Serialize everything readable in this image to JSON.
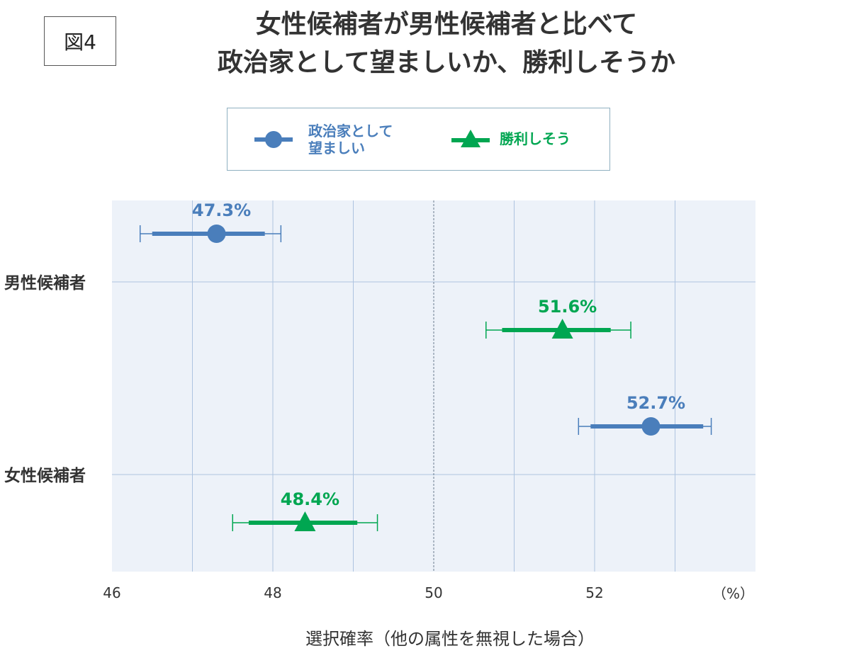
{
  "figure_label": "図4",
  "title_lines": [
    "女性候補者が男性候補者と比べて",
    "政治家として望ましいか、勝利しそうか"
  ],
  "legend": {
    "desirable_line1": "政治家として",
    "desirable_line2": "望ましい",
    "win": "勝利しそう"
  },
  "colors": {
    "desirable": "#4a7ebb",
    "win": "#00a651",
    "plot_bg": "#edf2f9",
    "grid": "#aec4e0",
    "ref_line": "#6b7c8f"
  },
  "chart_data": {
    "type": "scatter",
    "title": "女性候補者が男性候補者と比べて政治家として望ましいか、勝利しそうか",
    "xlabel": "選択確率（他の属性を無視した場合）",
    "unit": "（%）",
    "xlim": [
      46,
      54
    ],
    "x_ticks": [
      46,
      48,
      50,
      52
    ],
    "x_tick_labels": [
      "46",
      "48",
      "50",
      "52"
    ],
    "x_grid": [
      47,
      48,
      49,
      50,
      51,
      52,
      53
    ],
    "reference_line": 50,
    "categories": [
      "男性候補者",
      "女性候補者"
    ],
    "series": [
      {
        "name": "政治家として望ましい",
        "marker": "circle",
        "values": [
          47.3,
          52.7
        ],
        "labels": [
          "47.3%",
          "52.7%"
        ],
        "ci_inner": [
          [
            46.5,
            47.9
          ],
          [
            51.95,
            53.35
          ]
        ],
        "ci_outer": [
          [
            46.35,
            48.1
          ],
          [
            51.8,
            53.45
          ]
        ]
      },
      {
        "name": "勝利しそう",
        "marker": "triangle",
        "values": [
          51.6,
          48.4
        ],
        "labels": [
          "51.6%",
          "48.4%"
        ],
        "ci_inner": [
          [
            50.85,
            52.2
          ],
          [
            47.7,
            49.05
          ]
        ],
        "ci_outer": [
          [
            50.65,
            52.45
          ],
          [
            47.5,
            49.3
          ]
        ]
      }
    ],
    "grid": true
  }
}
